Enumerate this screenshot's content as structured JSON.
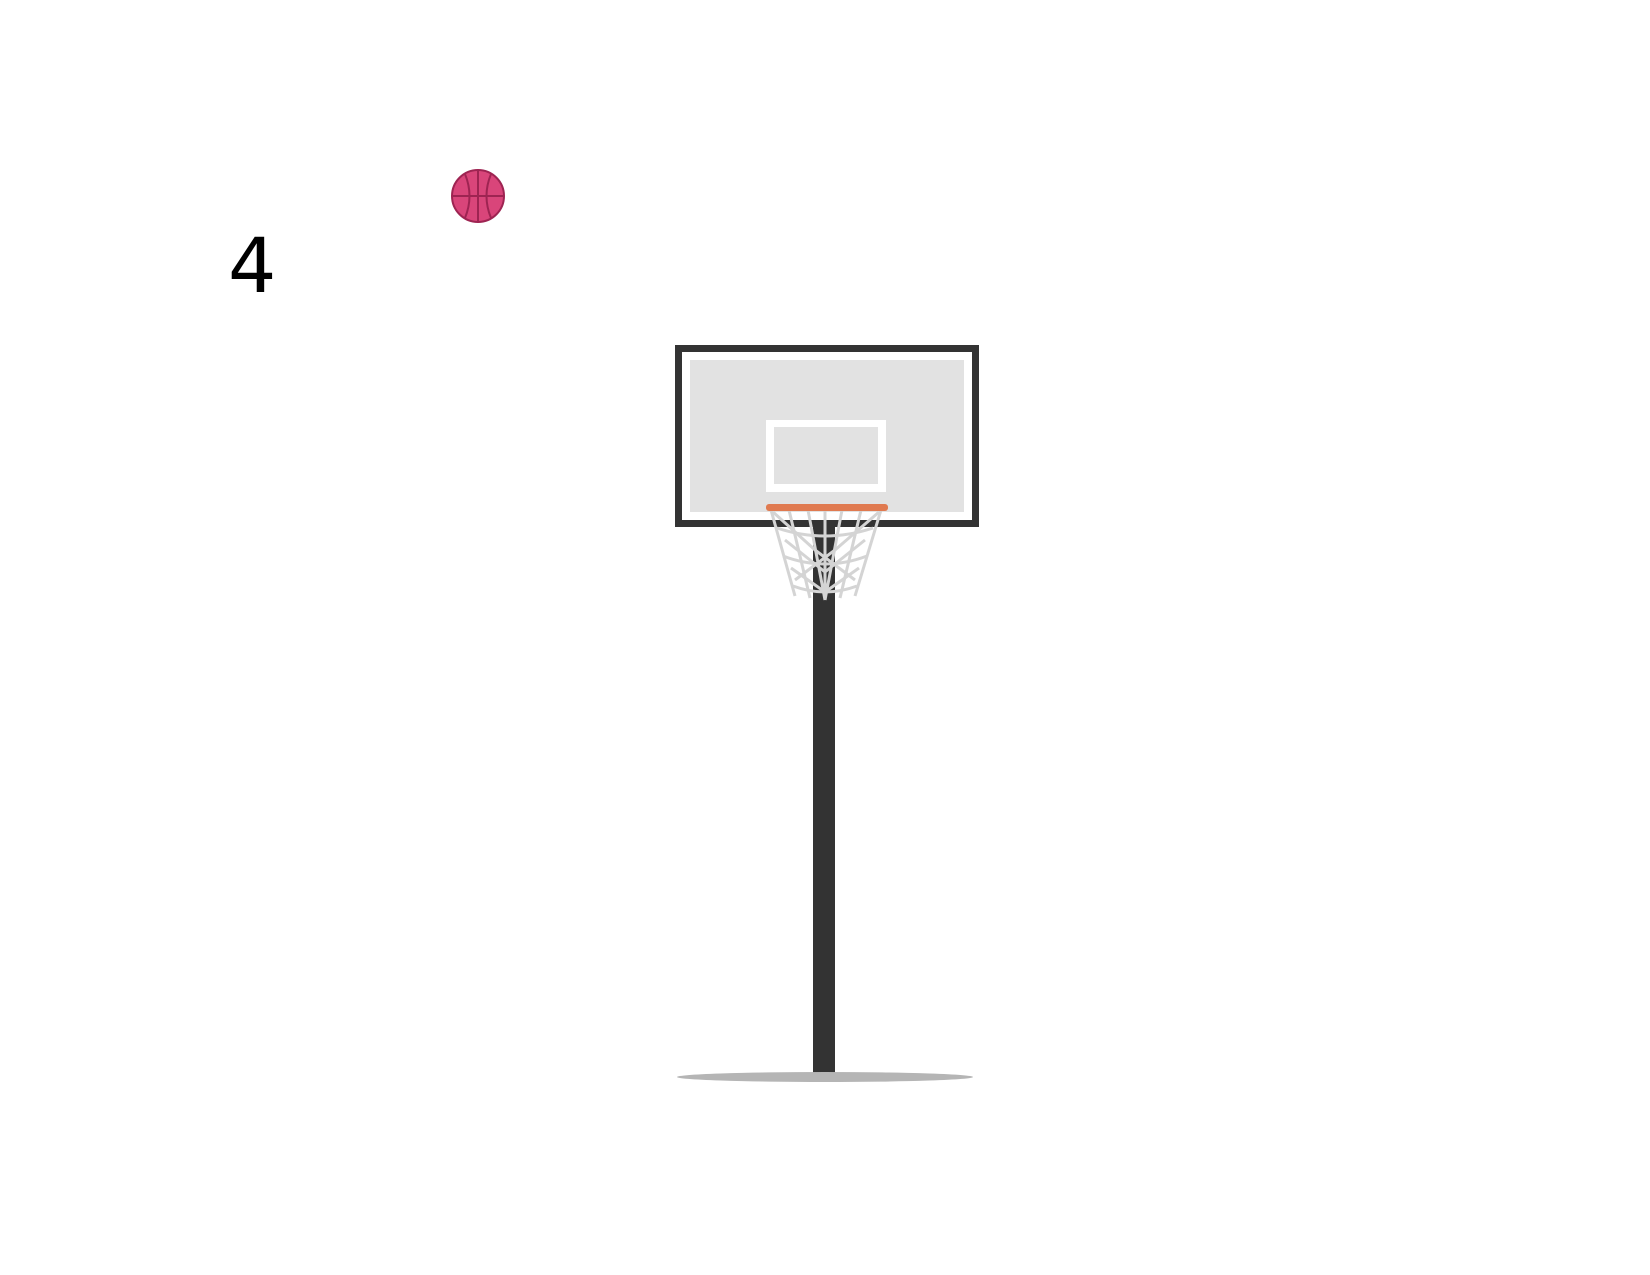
{
  "game": {
    "score": "4"
  },
  "colors": {
    "background": "#ffffff",
    "ball": "#d9457a",
    "ball_seams": "#9e2452",
    "backboard_frame": "#333333",
    "backboard_face": "#e2e2e2",
    "target_square": "#ffffff",
    "rim": "#e07a50",
    "net": "#d4d4d4",
    "pole": "#333333",
    "shadow": "#b5b5b5"
  },
  "icons": {
    "ball": "basketball-icon"
  }
}
